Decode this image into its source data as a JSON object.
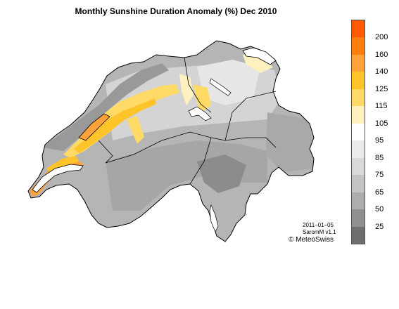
{
  "title": "Monthly Sunshine Duration Anomaly (%) Dec 2010",
  "legend": {
    "unit": "%",
    "bins": [
      {
        "color": "#ff5a00"
      },
      {
        "color": "#ff7f0e"
      },
      {
        "color": "#ffa23a"
      },
      {
        "color": "#ffc429"
      },
      {
        "color": "#ffda66"
      },
      {
        "color": "#fff0c0"
      },
      {
        "color": "#ffffff"
      },
      {
        "color": "#ebebeb"
      },
      {
        "color": "#d9d9d9"
      },
      {
        "color": "#c4c4c4"
      },
      {
        "color": "#adadad"
      },
      {
        "color": "#909090"
      },
      {
        "color": "#6e6e6e"
      }
    ],
    "ticks": [
      "200",
      "160",
      "140",
      "125",
      "115",
      "105",
      "95",
      "85",
      "75",
      "65",
      "50",
      "25"
    ]
  },
  "meta": {
    "date": "2011–01–05",
    "product": "SaromM v1.1",
    "copyright": "© MeteoSwiss"
  },
  "colors": {
    "border": "#000000",
    "land": "#b3b3b3"
  }
}
